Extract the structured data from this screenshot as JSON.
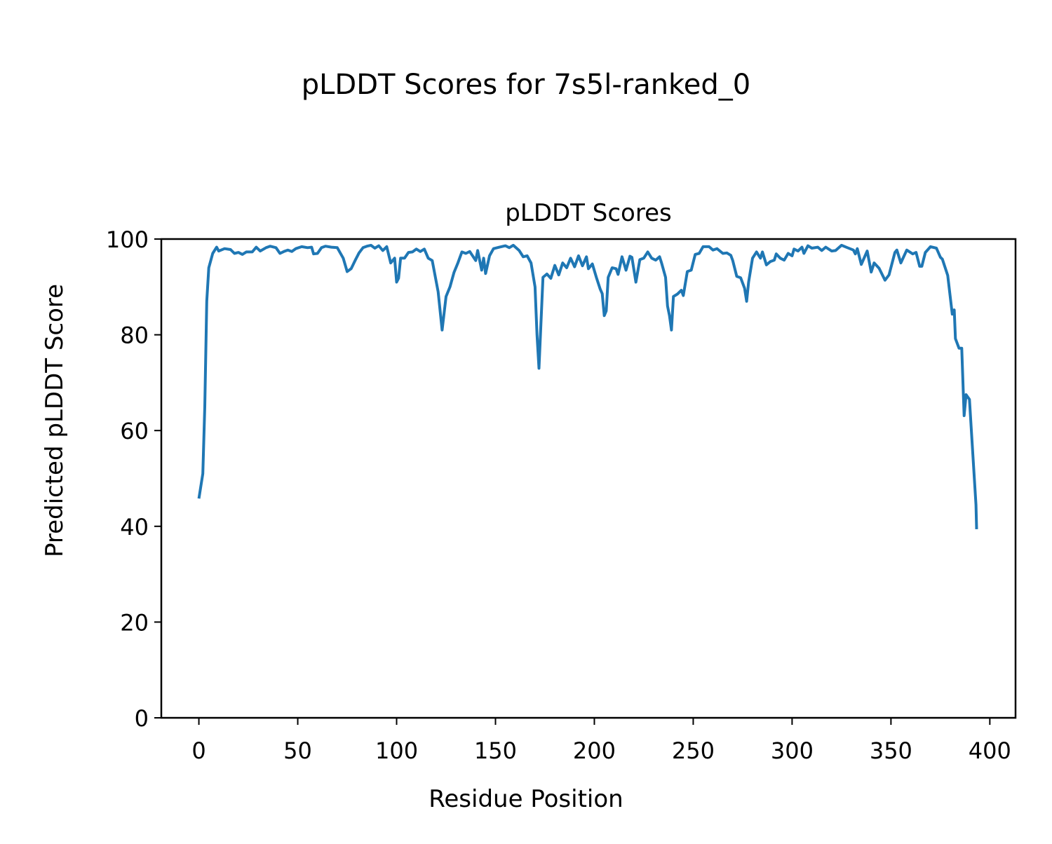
{
  "figure_title": "pLDDT Scores for 7s5l-ranked_0",
  "chart_data": {
    "type": "line",
    "title": "pLDDT Scores",
    "xlabel": "Residue Position",
    "ylabel": "Predicted pLDDT Score",
    "xlim": [
      -19,
      413
    ],
    "ylim": [
      0,
      100
    ],
    "xticks": [
      0,
      50,
      100,
      150,
      200,
      250,
      300,
      350,
      400
    ],
    "yticks": [
      0,
      20,
      40,
      60,
      80,
      100
    ],
    "grid": false,
    "line_color": "#1f77b4",
    "x": [
      0,
      2,
      3,
      4,
      5,
      7,
      9,
      10,
      13,
      16,
      18,
      20,
      22,
      24,
      27,
      29,
      31,
      34,
      36,
      39,
      41,
      43,
      45,
      47,
      49,
      52,
      55,
      57,
      58,
      60,
      62,
      64,
      67,
      70,
      73,
      75,
      77,
      79,
      81,
      83,
      85,
      87,
      89,
      91,
      93,
      95,
      97,
      99,
      100,
      101,
      102,
      104,
      106,
      108,
      110,
      112,
      114,
      116,
      118,
      121,
      123,
      125,
      127,
      129,
      131,
      133,
      135,
      137,
      140,
      141,
      143,
      144,
      145,
      147,
      149,
      152,
      155,
      157,
      159,
      162,
      164,
      166,
      168,
      170,
      171,
      172,
      174,
      176,
      178,
      180,
      182,
      184,
      186,
      188,
      190,
      192,
      194,
      196,
      197,
      199,
      201,
      203,
      204,
      205,
      206,
      207,
      209,
      211,
      212,
      214,
      216,
      218,
      219,
      221,
      223,
      225,
      227,
      229,
      231,
      233,
      234,
      236,
      237,
      238,
      239,
      240,
      242,
      244,
      245,
      247,
      249,
      251,
      253,
      255,
      258,
      260,
      262,
      265,
      267,
      269,
      270,
      272,
      274,
      276,
      277,
      278,
      280,
      282,
      284,
      285,
      287,
      289,
      291,
      292,
      294,
      296,
      298,
      300,
      301,
      303,
      305,
      306,
      308,
      310,
      313,
      315,
      317,
      320,
      322,
      325,
      328,
      331,
      332,
      333,
      335,
      338,
      340,
      341.5,
      344,
      347,
      349,
      352,
      353,
      355,
      358,
      361,
      362.7,
      364.5,
      365.6,
      367.4,
      370,
      373,
      375,
      376,
      378.7,
      381,
      382,
      382.6,
      384.4,
      385.8,
      387,
      388,
      389.7,
      391,
      393,
      393.3
    ],
    "y": [
      45.8,
      51,
      65,
      87,
      94,
      97,
      98.3,
      97.5,
      98,
      97.8,
      97,
      97.2,
      96.8,
      97.3,
      97.3,
      98.3,
      97.5,
      98.2,
      98.5,
      98.2,
      97,
      97.4,
      97.7,
      97.4,
      98,
      98.4,
      98.2,
      98.3,
      96.9,
      97,
      98.2,
      98.5,
      98.3,
      98.2,
      96,
      93.2,
      93.8,
      95.5,
      97.1,
      98.2,
      98.5,
      98.7,
      98.1,
      98.6,
      97.6,
      98.4,
      95,
      96,
      91,
      91.8,
      96,
      96,
      97.2,
      97.3,
      97.9,
      97.4,
      97.9,
      96,
      95.5,
      89,
      81,
      88,
      90,
      93,
      95,
      97.3,
      97,
      97.4,
      95.5,
      97.6,
      93.5,
      96,
      92.8,
      96.5,
      98,
      98.3,
      98.6,
      98.2,
      98.7,
      97.6,
      96.3,
      96.5,
      95,
      90,
      80,
      73,
      92,
      92.7,
      91.8,
      94.5,
      92.5,
      95,
      94,
      96,
      94.2,
      96.5,
      94.4,
      96.3,
      93.8,
      94.8,
      92,
      89.5,
      88.6,
      84,
      85,
      92,
      94,
      93.8,
      92.6,
      96.3,
      93.5,
      96.4,
      96.2,
      91,
      95.7,
      96,
      97.3,
      96,
      95.6,
      96.3,
      95,
      92,
      86,
      84,
      81,
      88,
      88.5,
      89.3,
      88.2,
      93.2,
      93.5,
      96.8,
      97,
      98.4,
      98.4,
      97.7,
      98,
      97,
      97.1,
      96.6,
      95.5,
      92.2,
      91.9,
      89.7,
      87,
      91,
      96,
      97.3,
      96,
      97.3,
      94.6,
      95.3,
      95.6,
      96.9,
      96,
      95.6,
      97,
      96.5,
      97.9,
      97.5,
      98.3,
      97,
      98.6,
      98.1,
      98.3,
      97.6,
      98.3,
      97.5,
      97.6,
      98.7,
      98.2,
      97.7,
      96.9,
      98,
      94.7,
      97.5,
      93.1,
      95,
      93.9,
      91.4,
      92.5,
      97.2,
      97.7,
      95,
      97.7,
      96.9,
      97.2,
      94.3,
      94.3,
      97.2,
      98.4,
      98.1,
      96.2,
      95.8,
      92.4,
      84.3,
      85.2,
      79.2,
      77.2,
      77.2,
      63.1,
      67.5,
      66.5,
      57.7,
      44.5,
      39.4
    ]
  }
}
